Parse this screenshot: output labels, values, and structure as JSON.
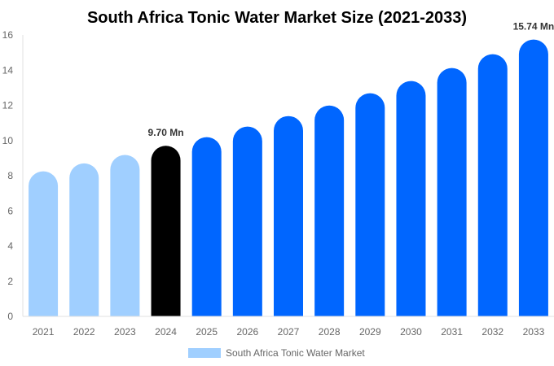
{
  "chart_data": {
    "type": "bar",
    "title": "South Africa Tonic Water Market Size (2021-2033)",
    "categories": [
      "2021",
      "2022",
      "2023",
      "2024",
      "2025",
      "2026",
      "2027",
      "2028",
      "2029",
      "2030",
      "2031",
      "2032",
      "2033"
    ],
    "series": [
      {
        "name": "South Africa Tonic Water Market",
        "values": [
          8.25,
          8.7,
          9.18,
          9.7,
          10.19,
          10.79,
          11.39,
          11.99,
          12.69,
          13.38,
          14.12,
          14.91,
          15.74
        ]
      }
    ],
    "data_labels": [
      {
        "index": 3,
        "text": "9.70 Mn"
      },
      {
        "index": 12,
        "text": "15.74 Mn"
      }
    ],
    "bar_colors": [
      "#a0cfff",
      "#a0cfff",
      "#a0cfff",
      "#000000",
      "#0066ff",
      "#0066ff",
      "#0066ff",
      "#0066ff",
      "#0066ff",
      "#0066ff",
      "#0066ff",
      "#0066ff",
      "#0066ff"
    ],
    "legend_color": "#a0cfff",
    "yticks": [
      0,
      2,
      4,
      6,
      8,
      10,
      12,
      14,
      16
    ],
    "ylim": [
      0,
      16
    ],
    "xlabel": "",
    "ylabel": "",
    "grid": false,
    "legend_position": "bottom"
  }
}
